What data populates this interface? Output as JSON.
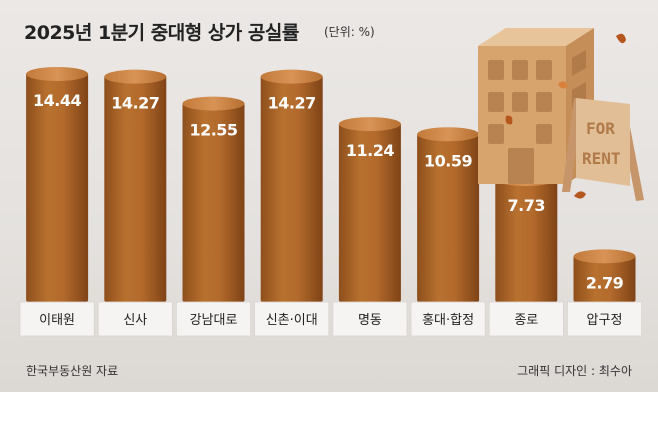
{
  "header": {
    "title": "2025년 1분기 중대형 상가 공실률",
    "unit": "(단위: %)"
  },
  "footer": {
    "source": "한국부동산원 자료",
    "credit": "그래픽 디자인 : 최수아"
  },
  "illustration": {
    "sign_line1": "FOR",
    "sign_line2": "RENT"
  },
  "colors": {
    "bar_body": "#b36a2c",
    "bar_top": "#cf8a4a",
    "label_box": "#f6f4f2"
  },
  "chart_data": {
    "type": "bar",
    "title": "2025년 1분기 중대형 상가 공실률",
    "unit": "%",
    "categories": [
      "이태원",
      "신사",
      "강남대로",
      "신촌·이대",
      "명동",
      "홍대·합정",
      "종로",
      "압구정"
    ],
    "values": [
      14.44,
      14.27,
      12.55,
      14.27,
      11.24,
      10.59,
      7.73,
      2.79
    ],
    "value_labels": [
      "14.44",
      "14.27",
      "12.55",
      "14.27",
      "11.24",
      "10.59",
      "7.73",
      "2.79"
    ],
    "ylim": [
      0,
      14.44
    ],
    "grid": false,
    "legend": "none"
  }
}
